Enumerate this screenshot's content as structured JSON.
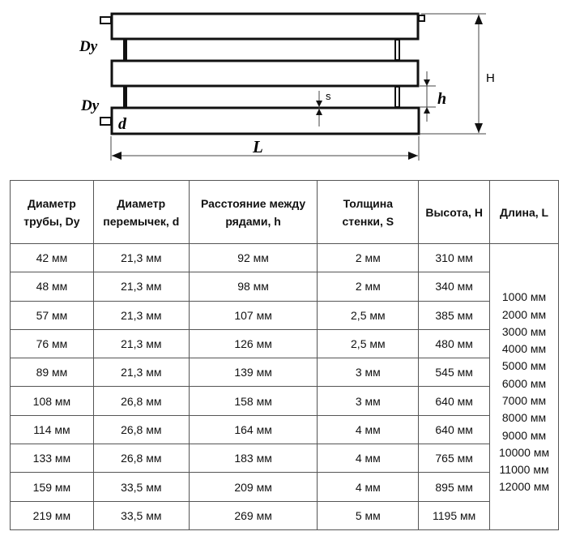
{
  "diagram": {
    "labels": {
      "dy_top": "Dy",
      "dy_bottom": "Dy",
      "d": "d",
      "s": "s",
      "h": "h",
      "H": "H",
      "L": "L"
    }
  },
  "table": {
    "headers": [
      [
        "Диаметр",
        "трубы, Dy"
      ],
      [
        "Диаметр",
        "перемычек, d"
      ],
      [
        "Расстояние между",
        "рядами, h"
      ],
      [
        "Толщина",
        "стенки, S"
      ],
      [
        "Высота, H"
      ],
      [
        "Длина, L"
      ]
    ],
    "rows": [
      [
        "42 мм",
        "21,3 мм",
        "92 мм",
        "2 мм",
        "310 мм"
      ],
      [
        "48 мм",
        "21,3 мм",
        "98 мм",
        "2 мм",
        "340 мм"
      ],
      [
        "57 мм",
        "21,3 мм",
        "107 мм",
        "2,5 мм",
        "385 мм"
      ],
      [
        "76 мм",
        "21,3 мм",
        "126 мм",
        "2,5 мм",
        "480 мм"
      ],
      [
        "89 мм",
        "21,3 мм",
        "139 мм",
        "3 мм",
        "545 мм"
      ],
      [
        "108 мм",
        "26,8 мм",
        "158 мм",
        "3 мм",
        "640 мм"
      ],
      [
        "114 мм",
        "26,8 мм",
        "164 мм",
        "4 мм",
        "640 мм"
      ],
      [
        "133 мм",
        "26,8 мм",
        "183 мм",
        "4 мм",
        "765 мм"
      ],
      [
        "159 мм",
        "33,5 мм",
        "209 мм",
        "4 мм",
        "895 мм"
      ],
      [
        "219 мм",
        "33,5 мм",
        "269 мм",
        "5 мм",
        "1195 мм"
      ]
    ],
    "lengths": [
      "1000 мм",
      "2000 мм",
      "3000 мм",
      "4000 мм",
      "5000 мм",
      "6000 мм",
      "7000 мм",
      "8000 мм",
      "9000 мм",
      "10000 мм",
      "11000 мм",
      "12000 мм"
    ]
  }
}
